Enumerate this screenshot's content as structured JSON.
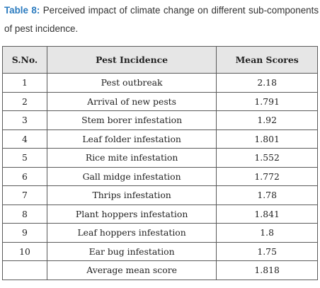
{
  "caption": {
    "label": "Table 8:",
    "text": " Perceived impact of climate change on different sub-components of pest incidence."
  },
  "table": {
    "headers": [
      "S.No.",
      "Pest Incidence",
      "Mean Scores"
    ],
    "rows": [
      {
        "sno": "1",
        "incidence": "Pest outbreak",
        "score": "2.18"
      },
      {
        "sno": "2",
        "incidence": "Arrival of new pests",
        "score": "1.791"
      },
      {
        "sno": "3",
        "incidence": "Stem borer infestation",
        "score": "1.92"
      },
      {
        "sno": "4",
        "incidence": "Leaf folder infestation",
        "score": "1.801"
      },
      {
        "sno": "5",
        "incidence": "Rice mite infestation",
        "score": "1.552"
      },
      {
        "sno": "6",
        "incidence": "Gall midge infestation",
        "score": "1.772"
      },
      {
        "sno": "7",
        "incidence": "Thrips infestation",
        "score": "1.78"
      },
      {
        "sno": "8",
        "incidence": "Plant hoppers infestation",
        "score": "1.841"
      },
      {
        "sno": "9",
        "incidence": "Leaf hoppers infestation",
        "score": "1.8"
      },
      {
        "sno": "10",
        "incidence": "Ear bug infestation",
        "score": "1.75"
      }
    ],
    "footer": {
      "sno": "",
      "incidence": "Average mean score",
      "score": "1.818"
    }
  },
  "colors": {
    "label": "#2b7bbf",
    "header_bg": "#e6e6e6",
    "border": "#5a5a5a"
  }
}
